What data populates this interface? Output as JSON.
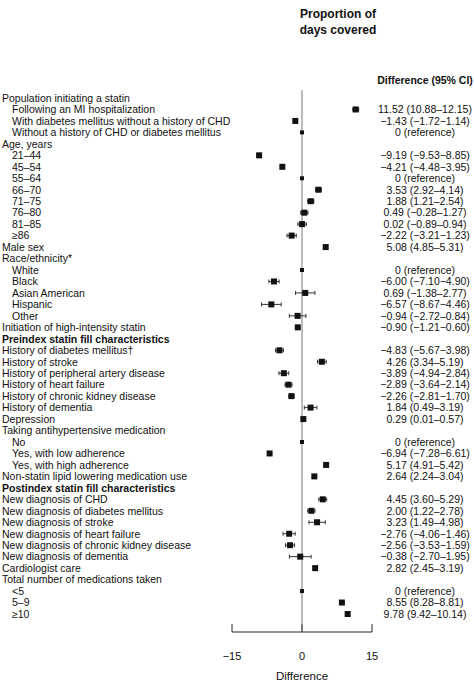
{
  "chart_data": {
    "type": "forest",
    "title": "Proportion of days covered",
    "column_header": "Difference (95% CI)",
    "x_label": "Difference",
    "xlim": [
      -15,
      15
    ],
    "xticks": [
      -15,
      0,
      15
    ],
    "rows": [
      {
        "label": "Population initiating a statin",
        "rows": [
          {
            "label": "Following an MI hospitalization",
            "value": 11.52,
            "ci": [
              10.88,
              12.15
            ],
            "value_label": "11.52 (10.88–12.15)"
          },
          {
            "label": "With diabetes mellitus without a history of CHD",
            "value": -1.43,
            "ci": [
              -1.72,
              -1.14
            ],
            "value_label": "−1.43 (−1.72−1.14)"
          },
          {
            "label": "Without a history of CHD or diabetes mellitus",
            "value": 0,
            "value_label": "0 (reference)"
          }
        ]
      },
      {
        "label": "Age, years",
        "rows": [
          {
            "label": "21–44",
            "value": -9.19,
            "ci": [
              -9.53,
              -8.85
            ],
            "value_label": "−9.19 (−9.53−8.85)"
          },
          {
            "label": "45–54",
            "value": -4.21,
            "ci": [
              -4.48,
              -3.95
            ],
            "value_label": "−4.21 (−4.48−3.95)"
          },
          {
            "label": "55–64",
            "value": 0,
            "value_label": "0 (reference)"
          },
          {
            "label": "66–70",
            "value": 3.53,
            "ci": [
              2.92,
              4.14
            ],
            "value_label": "3.53 (2.92–4.14)"
          },
          {
            "label": "71–75",
            "value": 1.88,
            "ci": [
              1.21,
              2.54
            ],
            "value_label": "1.88 (1.21–2.54)"
          },
          {
            "label": "76–80",
            "value": 0.49,
            "ci": [
              -0.28,
              1.27
            ],
            "value_label": "0.49 (−0.28–1.27)"
          },
          {
            "label": "81–85",
            "value": 0.02,
            "ci": [
              -0.89,
              0.94
            ],
            "value_label": "0.02 (−0.89–0.94)"
          },
          {
            "label": "≥86",
            "value": -2.22,
            "ci": [
              -3.21,
              -1.23
            ],
            "value_label": "−2.22 (−3.21−1.23)"
          }
        ]
      },
      {
        "label": "Male sex",
        "value": 5.08,
        "ci": [
          4.85,
          5.31
        ],
        "value_label": "5.08 (4.85–5.31)"
      },
      {
        "label": "Race/ethnicity*",
        "rows": [
          {
            "label": "White",
            "value": 0,
            "value_label": "0 (reference)"
          },
          {
            "label": "Black",
            "value": -6.0,
            "ci": [
              -7.1,
              -4.9
            ],
            "value_label": "−6.00 (−7.10−4.90)"
          },
          {
            "label": "Asian American",
            "value": 0.69,
            "ci": [
              -1.38,
              2.77
            ],
            "value_label": "0.69 (−1.38–2.77)"
          },
          {
            "label": "Hispanic",
            "value": -6.57,
            "ci": [
              -8.67,
              -4.46
            ],
            "value_label": "−6.57 (−8.67−4.46)"
          },
          {
            "label": "Other",
            "value": -0.94,
            "ci": [
              -2.72,
              0.84
            ],
            "value_label": "−0.94 (−2.72–0.84)"
          }
        ]
      },
      {
        "label": "Initiation of high-intensity statin",
        "value": -0.9,
        "ci": [
          -1.21,
          -0.6
        ],
        "value_label": "−0.90 (−1.21−0.60)"
      }
    ],
    "sections": [
      {
        "title": "Preindex statin fill characteristics",
        "rows": [
          {
            "label": "History of diabetes mellitus†",
            "value": -4.83,
            "ci": [
              -5.67,
              -3.98
            ],
            "value_label": "−4.83 (−5.67−3.98)"
          },
          {
            "label": "History of stroke",
            "value": 4.26,
            "ci": [
              3.34,
              5.19
            ],
            "value_label": "4.26 (3.34–5.19)"
          },
          {
            "label": "History of peripheral artery disease",
            "value": -3.89,
            "ci": [
              -4.94,
              -2.84
            ],
            "value_label": "−3.89 (−4.94−2.84)"
          },
          {
            "label": "History of heart failure",
            "value": -2.89,
            "ci": [
              -3.64,
              -2.14
            ],
            "value_label": "−2.89 (−3.64−2.14)"
          },
          {
            "label": "History of chronic kidney disease",
            "value": -2.26,
            "ci": [
              -2.81,
              -1.7
            ],
            "value_label": "−2.26 (−2.81−1.70)"
          },
          {
            "label": "History of dementia",
            "value": 1.84,
            "ci": [
              0.49,
              3.19
            ],
            "value_label": "1.84 (0.49–3.19)"
          },
          {
            "label": "Depression",
            "value": 0.29,
            "ci": [
              0.01,
              0.57
            ],
            "value_label": "0.29 (0.01–0.57)"
          },
          {
            "label": "Taking antihypertensive medication",
            "rows": [
              {
                "label": "No",
                "value": 0,
                "value_label": "0 (reference)"
              },
              {
                "label": "Yes, with low adherence",
                "value": -6.94,
                "ci": [
                  -7.28,
                  -6.61
                ],
                "value_label": "−6.94 (−7.28−6.61)"
              },
              {
                "label": "Yes, with high adherence",
                "value": 5.17,
                "ci": [
                  4.91,
                  5.42
                ],
                "value_label": "5.17 (4.91–5.42)"
              }
            ]
          },
          {
            "label": "Non-statin lipid lowering medication use",
            "value": 2.64,
            "ci": [
              2.24,
              3.04
            ],
            "value_label": "2.64 (2.24–3.04)"
          }
        ]
      },
      {
        "title": "Postindex statin fill characteristics",
        "rows": [
          {
            "label": "New diagnosis of CHD",
            "value": 4.45,
            "ci": [
              3.6,
              5.29
            ],
            "value_label": "4.45 (3.60–5.29)"
          },
          {
            "label": "New diagnosis of diabetes mellitus",
            "value": 2.0,
            "ci": [
              1.22,
              2.78
            ],
            "value_label": "2.00 (1.22–2.78)"
          },
          {
            "label": "New diagnosis of stroke",
            "value": 3.23,
            "ci": [
              1.49,
              4.98
            ],
            "value_label": "3.23 (1.49–4.98)"
          },
          {
            "label": "New diagnosis of heart failure",
            "value": -2.76,
            "ci": [
              -4.06,
              -1.46
            ],
            "value_label": "−2.76 (−4.06−1.46)"
          },
          {
            "label": "New diagnosis of chronic kidney disease",
            "value": -2.56,
            "ci": [
              -3.53,
              -1.59
            ],
            "value_label": "−2.56 (−3.53−1.59)"
          },
          {
            "label": "New diagnosis of dementia",
            "value": -0.38,
            "ci": [
              -2.7,
              1.95
            ],
            "value_label": "−0.38 (−2.70–1.95)"
          },
          {
            "label": "Cardiologist care",
            "value": 2.82,
            "ci": [
              2.45,
              3.19
            ],
            "value_label": "2.82 (2.45–3.19)"
          },
          {
            "label": "Total number of medications taken",
            "rows": [
              {
                "label": "<5",
                "value": 0,
                "value_label": "0 (reference)"
              },
              {
                "label": "5–9",
                "value": 8.55,
                "ci": [
                  8.28,
                  8.81
                ],
                "value_label": "8.55 (8.28–8.81)"
              },
              {
                "label": "≥10",
                "value": 9.78,
                "ci": [
                  9.42,
                  10.14
                ],
                "value_label": "9.78 (9.42–10.14)"
              }
            ]
          }
        ]
      }
    ]
  }
}
